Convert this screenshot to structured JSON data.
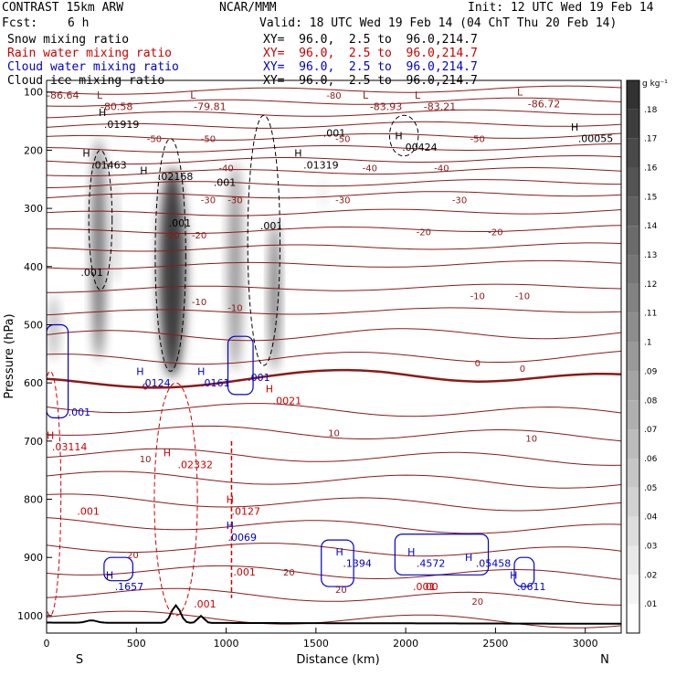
{
  "header": {
    "model": "CONTRAST 15km ARW",
    "center": "NCAR/MMM",
    "init": "Init: 12 UTC Wed 19 Feb 14",
    "fcst_label": "Fcst:",
    "fcst_value": "6 h",
    "valid": "Valid: 18 UTC Wed 19 Feb 14 (04 ChT Thu 20 Feb 14)",
    "fields": [
      {
        "name": "Snow mixing ratio",
        "xy": "XY=  96.0,  2.5 to  96.0,214.7",
        "color": "#000000"
      },
      {
        "name": "Rain water mixing ratio",
        "xy": "XY=  96.0,  2.5 to  96.0,214.7",
        "color": "#cc0000"
      },
      {
        "name": "Cloud water mixing ratio",
        "xy": "XY=  96.0,  2.5 to  96.0,214.7",
        "color": "#0000cc"
      },
      {
        "name": "Cloud ice mixing ratio",
        "xy": "XY=  96.0,  2.5 to  96.0,214.7",
        "color": "#000000"
      }
    ]
  },
  "chart_data": {
    "type": "cross-section",
    "xlabel": "Distance (km)",
    "ylabel": "Pressure (hPa)",
    "xlim": [
      0,
      3200
    ],
    "ylim": [
      1030,
      80
    ],
    "x_ticks": [
      0,
      500,
      1000,
      1500,
      2000,
      2500,
      3000
    ],
    "y_ticks": [
      100,
      200,
      300,
      400,
      500,
      600,
      700,
      800,
      900,
      1000
    ],
    "x_ends": {
      "left": "S",
      "right": "N"
    },
    "colorbar": {
      "unit": "g kg⁻¹",
      "ticks": [
        ".18",
        ".17",
        ".16",
        ".15",
        ".14",
        ".13",
        ".12",
        ".11",
        ".1",
        ".09",
        ".08",
        ".07",
        ".06",
        ".05",
        ".04",
        ".03",
        ".02",
        ".01"
      ],
      "min": 0,
      "max": 0.19
    },
    "snow_columns": [
      {
        "x": 290,
        "p_top": 180,
        "p_bot": 560,
        "width": 80,
        "peak": 0.12
      },
      {
        "x": 380,
        "p_top": 250,
        "p_bot": 430,
        "width": 40,
        "peak": 0.05
      },
      {
        "x": 700,
        "p_top": 230,
        "p_bot": 590,
        "width": 150,
        "peak": 0.17
      },
      {
        "x": 1050,
        "p_top": 220,
        "p_bot": 580,
        "width": 80,
        "peak": 0.09
      },
      {
        "x": 1270,
        "p_top": 320,
        "p_bot": 580,
        "width": 60,
        "peak": 0.12
      },
      {
        "x": 40,
        "p_top": 450,
        "p_bot": 560,
        "width": 60,
        "peak": 0.06
      },
      {
        "x": 1540,
        "p_top": 250,
        "p_bot": 300,
        "width": 20,
        "peak": 0.02
      }
    ],
    "temperature_labels": [
      {
        "x": 1600,
        "p": 105,
        "v": "-80"
      },
      {
        "x": 600,
        "p": 180,
        "v": "-50"
      },
      {
        "x": 900,
        "p": 180,
        "v": "-50"
      },
      {
        "x": 1650,
        "p": 180,
        "v": "-50"
      },
      {
        "x": 2400,
        "p": 180,
        "v": "-50"
      },
      {
        "x": 1000,
        "p": 230,
        "v": "-40"
      },
      {
        "x": 1800,
        "p": 230,
        "v": "-40"
      },
      {
        "x": 2200,
        "p": 230,
        "v": "-40"
      },
      {
        "x": 900,
        "p": 285,
        "v": "-30"
      },
      {
        "x": 1050,
        "p": 285,
        "v": "-30"
      },
      {
        "x": 1650,
        "p": 285,
        "v": "-30"
      },
      {
        "x": 2300,
        "p": 285,
        "v": "-30"
      },
      {
        "x": 700,
        "p": 345,
        "v": "-20"
      },
      {
        "x": 850,
        "p": 345,
        "v": "-20"
      },
      {
        "x": 2100,
        "p": 340,
        "v": "-20"
      },
      {
        "x": 2500,
        "p": 340,
        "v": "-20"
      },
      {
        "x": 850,
        "p": 460,
        "v": "-10"
      },
      {
        "x": 1050,
        "p": 470,
        "v": "-10"
      },
      {
        "x": 2400,
        "p": 450,
        "v": "-10"
      },
      {
        "x": 2650,
        "p": 450,
        "v": "-10"
      },
      {
        "x": 2400,
        "p": 565,
        "v": "0"
      },
      {
        "x": 2650,
        "p": 575,
        "v": "0"
      },
      {
        "x": 550,
        "p": 605,
        "v": "0"
      },
      {
        "x": 1600,
        "p": 685,
        "v": "10"
      },
      {
        "x": 2700,
        "p": 695,
        "v": "10"
      },
      {
        "x": 550,
        "p": 730,
        "v": "10"
      },
      {
        "x": 480,
        "p": 895,
        "v": "20"
      },
      {
        "x": 1350,
        "p": 925,
        "v": "20"
      },
      {
        "x": 1640,
        "p": 955,
        "v": "20"
      },
      {
        "x": 2400,
        "p": 975,
        "v": "20"
      }
    ],
    "extrema_labels": [
      {
        "x": 0,
        "p": 105,
        "t": "-86.64",
        "c": "#8b1a1a"
      },
      {
        "x": 280,
        "p": 105,
        "t": "L",
        "c": "#8b1a1a"
      },
      {
        "x": 300,
        "p": 125,
        "t": "-80.58",
        "c": "#8b1a1a"
      },
      {
        "x": 800,
        "p": 105,
        "t": "L",
        "c": "#8b1a1a"
      },
      {
        "x": 820,
        "p": 125,
        "t": "-79.81",
        "c": "#8b1a1a"
      },
      {
        "x": 1760,
        "p": 105,
        "t": "L",
        "c": "#8b1a1a"
      },
      {
        "x": 1800,
        "p": 125,
        "t": "-83.93",
        "c": "#8b1a1a"
      },
      {
        "x": 2050,
        "p": 105,
        "t": "L",
        "c": "#8b1a1a"
      },
      {
        "x": 2100,
        "p": 125,
        "t": "-83.21",
        "c": "#8b1a1a"
      },
      {
        "x": 2620,
        "p": 100,
        "t": "L",
        "c": "#8b1a1a"
      },
      {
        "x": 2680,
        "p": 120,
        "t": "-86.72",
        "c": "#8b1a1a"
      },
      {
        "x": 290,
        "p": 135,
        "t": "H",
        "c": "#000000"
      },
      {
        "x": 320,
        "p": 155,
        "t": ".01919",
        "c": "#000000"
      },
      {
        "x": 2920,
        "p": 160,
        "t": "H",
        "c": "#000000"
      },
      {
        "x": 2960,
        "p": 180,
        "t": ".00055",
        "c": "#000000"
      },
      {
        "x": 1540,
        "p": 170,
        "t": ".001",
        "c": "#000000"
      },
      {
        "x": 1940,
        "p": 175,
        "t": "H",
        "c": "#000000"
      },
      {
        "x": 1980,
        "p": 195,
        "t": ".00424",
        "c": "#000000"
      },
      {
        "x": 200,
        "p": 205,
        "t": "H",
        "c": "#000000"
      },
      {
        "x": 250,
        "p": 225,
        "t": ".01463",
        "c": "#000000"
      },
      {
        "x": 1380,
        "p": 205,
        "t": "H",
        "c": "#000000"
      },
      {
        "x": 1430,
        "p": 225,
        "t": ".01319",
        "c": "#000000"
      },
      {
        "x": 520,
        "p": 235,
        "t": "H",
        "c": "#000000"
      },
      {
        "x": 620,
        "p": 245,
        "t": ".02168",
        "c": "#000000"
      },
      {
        "x": 930,
        "p": 255,
        "t": ".001",
        "c": "#000000"
      },
      {
        "x": 1190,
        "p": 330,
        "t": ".001",
        "c": "#000000"
      },
      {
        "x": 680,
        "p": 325,
        "t": ".001",
        "c": "#000000"
      },
      {
        "x": 190,
        "p": 410,
        "t": ".001",
        "c": "#000000"
      },
      {
        "x": 500,
        "p": 580,
        "t": "H",
        "c": "#0000cc"
      },
      {
        "x": 530,
        "p": 600,
        "t": ".0124",
        "c": "#0000cc"
      },
      {
        "x": 840,
        "p": 580,
        "t": "H",
        "c": "#0000cc"
      },
      {
        "x": 860,
        "p": 600,
        "t": ".0161",
        "c": "#0000cc"
      },
      {
        "x": 1120,
        "p": 590,
        "t": ".001",
        "c": "#0000cc"
      },
      {
        "x": 120,
        "p": 650,
        "t": ".001",
        "c": "#0000cc"
      },
      {
        "x": 0,
        "p": 690,
        "t": "H",
        "c": "#cc0000"
      },
      {
        "x": 30,
        "p": 710,
        "t": ".03114",
        "c": "#cc0000"
      },
      {
        "x": 650,
        "p": 720,
        "t": "H",
        "c": "#cc0000"
      },
      {
        "x": 730,
        "p": 740,
        "t": ".02332",
        "c": "#cc0000"
      },
      {
        "x": 1220,
        "p": 610,
        "t": "H",
        "c": "#cc0000"
      },
      {
        "x": 1260,
        "p": 630,
        "t": ".0021",
        "c": "#cc0000"
      },
      {
        "x": 1000,
        "p": 800,
        "t": "H",
        "c": "#cc0000"
      },
      {
        "x": 1030,
        "p": 820,
        "t": ".0127",
        "c": "#cc0000"
      },
      {
        "x": 1000,
        "p": 845,
        "t": "H",
        "c": "#0000cc"
      },
      {
        "x": 1010,
        "p": 865,
        "t": ".0069",
        "c": "#0000cc"
      },
      {
        "x": 170,
        "p": 820,
        "t": ".001",
        "c": "#cc0000"
      },
      {
        "x": 1040,
        "p": 925,
        "t": ".001",
        "c": "#cc0000"
      },
      {
        "x": 820,
        "p": 980,
        "t": ".001",
        "c": "#cc0000"
      },
      {
        "x": 330,
        "p": 930,
        "t": "H",
        "c": "#0000cc"
      },
      {
        "x": 380,
        "p": 950,
        "t": ".1657",
        "c": "#0000cc"
      },
      {
        "x": 1610,
        "p": 890,
        "t": "H",
        "c": "#0000cc"
      },
      {
        "x": 1650,
        "p": 910,
        "t": ".1394",
        "c": "#0000cc"
      },
      {
        "x": 2010,
        "p": 890,
        "t": "H",
        "c": "#0000cc"
      },
      {
        "x": 2060,
        "p": 910,
        "t": ".4572",
        "c": "#0000cc"
      },
      {
        "x": 2330,
        "p": 900,
        "t": "H",
        "c": "#0000cc"
      },
      {
        "x": 2390,
        "p": 910,
        "t": ".05458",
        "c": "#0000cc"
      },
      {
        "x": 2580,
        "p": 930,
        "t": "H",
        "c": "#0000cc"
      },
      {
        "x": 2620,
        "p": 950,
        "t": ".0611",
        "c": "#0000cc"
      },
      {
        "x": 2040,
        "p": 950,
        "t": ".001",
        "c": "#cc0000"
      },
      {
        "x": 2110,
        "p": 950,
        "t": "00",
        "c": "#cc0000"
      }
    ]
  }
}
